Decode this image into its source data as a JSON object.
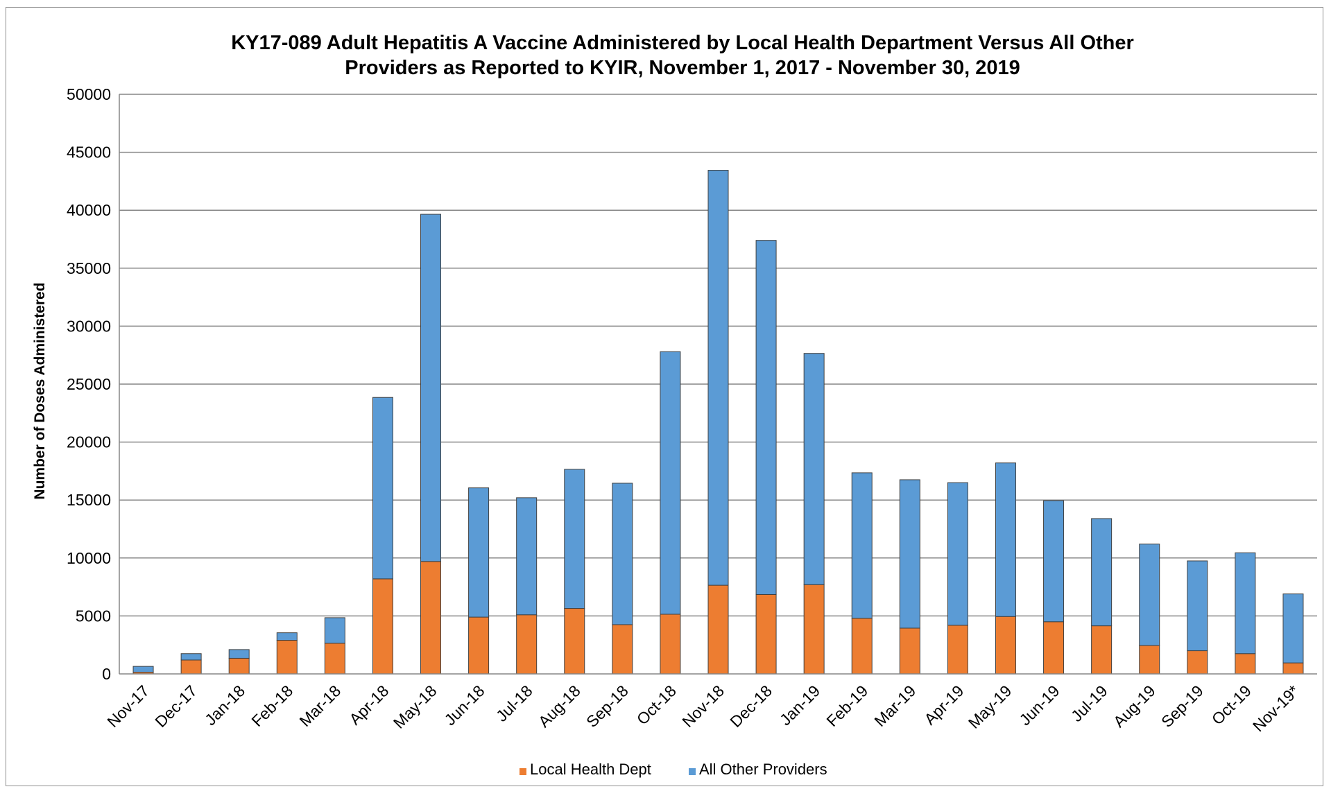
{
  "chart_data": {
    "type": "bar",
    "stacked": true,
    "title": "KY17-089 Adult Hepatitis A Vaccine Administered by Local Health Department Versus All Other Providers as Reported to KYIR, November 1, 2017 - November 30, 2019",
    "title_lines": [
      "KY17-089 Adult Hepatitis A Vaccine Administered by Local Health Department Versus All Other",
      "Providers as Reported to KYIR, November 1, 2017 - November 30, 2019"
    ],
    "xlabel": "",
    "ylabel": "Number of Doses Administered",
    "ylim": [
      0,
      50000
    ],
    "yticks": [
      0,
      5000,
      10000,
      15000,
      20000,
      25000,
      30000,
      35000,
      40000,
      45000,
      50000
    ],
    "grid": true,
    "legend_position": "bottom",
    "categories": [
      "Nov-17",
      "Dec-17",
      "Jan-18",
      "Feb-18",
      "Mar-18",
      "Apr-18",
      "May-18",
      "Jun-18",
      "Jul-18",
      "Aug-18",
      "Sep-18",
      "Oct-18",
      "Nov-18",
      "Dec-18",
      "Jan-19",
      "Feb-19",
      "Mar-19",
      "Apr-19",
      "May-19",
      "Jun-19",
      "Jul-19",
      "Aug-19",
      "Sep-19",
      "Oct-19",
      "Nov-19*"
    ],
    "series": [
      {
        "name": "Local Health Dept",
        "color": "#ED7D31",
        "values": [
          150,
          1200,
          1350,
          2900,
          2650,
          8200,
          9700,
          4900,
          5100,
          5650,
          4250,
          5150,
          7650,
          6850,
          7700,
          4800,
          3950,
          4200,
          4950,
          4500,
          4150,
          2450,
          2000,
          1750,
          950
        ]
      },
      {
        "name": "All Other Providers",
        "color": "#5B9BD5",
        "values": [
          500,
          550,
          750,
          650,
          2200,
          15650,
          29950,
          11150,
          10100,
          12000,
          12200,
          22650,
          35800,
          30550,
          19950,
          12550,
          12800,
          12300,
          13250,
          10450,
          9250,
          8750,
          7750,
          8700,
          5950
        ]
      }
    ]
  }
}
